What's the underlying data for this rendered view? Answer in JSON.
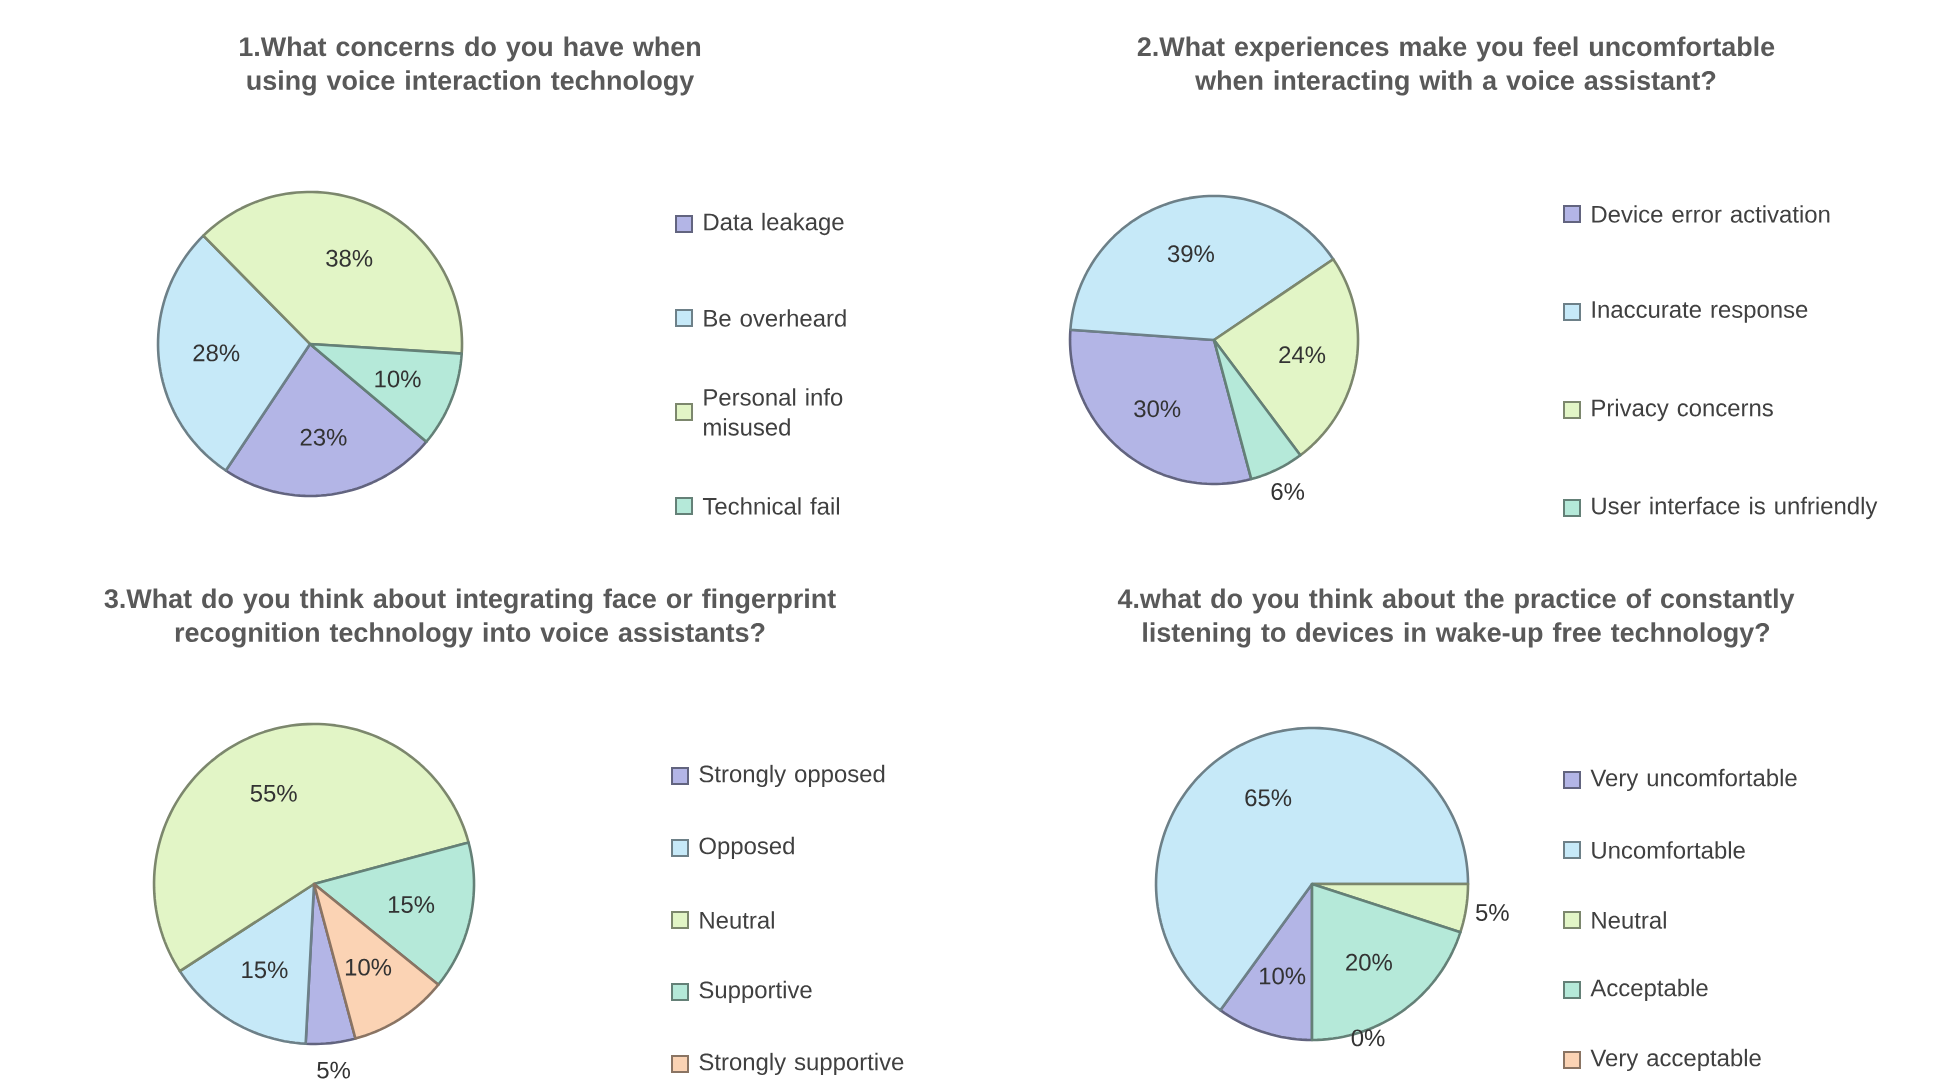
{
  "chart_data": [
    {
      "type": "pie",
      "title": "1.What concerns do you have when using voice interaction technology",
      "categories": [
        "Data leakage",
        "Be overheard",
        "Personal info misused",
        "Technical fail"
      ],
      "values": [
        23,
        28,
        38,
        10
      ],
      "value_labels": [
        "23%",
        "28%",
        "38%",
        "10%"
      ],
      "colors": [
        "#b3b5e6",
        "#c6e9f8",
        "#e2f5c6",
        "#b5e9d9"
      ],
      "legend": "right"
    },
    {
      "type": "pie",
      "title": "2.What experiences make you feel uncomfortable when interacting with a voice assistant?",
      "categories": [
        "Device error activation",
        "Inaccurate response",
        "Privacy concerns",
        "User interface is unfriendly"
      ],
      "values": [
        30,
        39,
        24,
        6
      ],
      "value_labels": [
        "30%",
        "39%",
        "24%",
        "6%"
      ],
      "colors": [
        "#b3b5e6",
        "#c6e9f8",
        "#e2f5c6",
        "#b5e9d9"
      ],
      "legend": "right"
    },
    {
      "type": "pie",
      "title": "3.What do you think about integrating face or fingerprint recognition technology into voice assistants?",
      "categories": [
        "Strongly opposed",
        "Opposed",
        "Neutral",
        "Supportive",
        "Strongly supportive"
      ],
      "values": [
        5,
        15,
        55,
        15,
        10
      ],
      "value_labels": [
        "5%",
        "15%",
        "55%",
        "15%",
        "10%"
      ],
      "colors": [
        "#b3b5e6",
        "#c6e9f8",
        "#e2f5c6",
        "#b5e9d9",
        "#fbd3b4"
      ],
      "legend": "right"
    },
    {
      "type": "pie",
      "title": "4.what do you think about the practice of constantly listening to devices in wake-up free technology?",
      "categories": [
        "Very uncomfortable",
        "Uncomfortable",
        "Neutral",
        "Acceptable",
        "Very acceptable"
      ],
      "values": [
        10,
        65,
        5,
        20,
        0
      ],
      "value_labels": [
        "10%",
        "65%",
        "5%",
        "20%",
        "0%"
      ],
      "colors": [
        "#b3b5e6",
        "#c6e9f8",
        "#e2f5c6",
        "#b5e9d9",
        "#fbd3b4"
      ],
      "legend": "right"
    }
  ]
}
